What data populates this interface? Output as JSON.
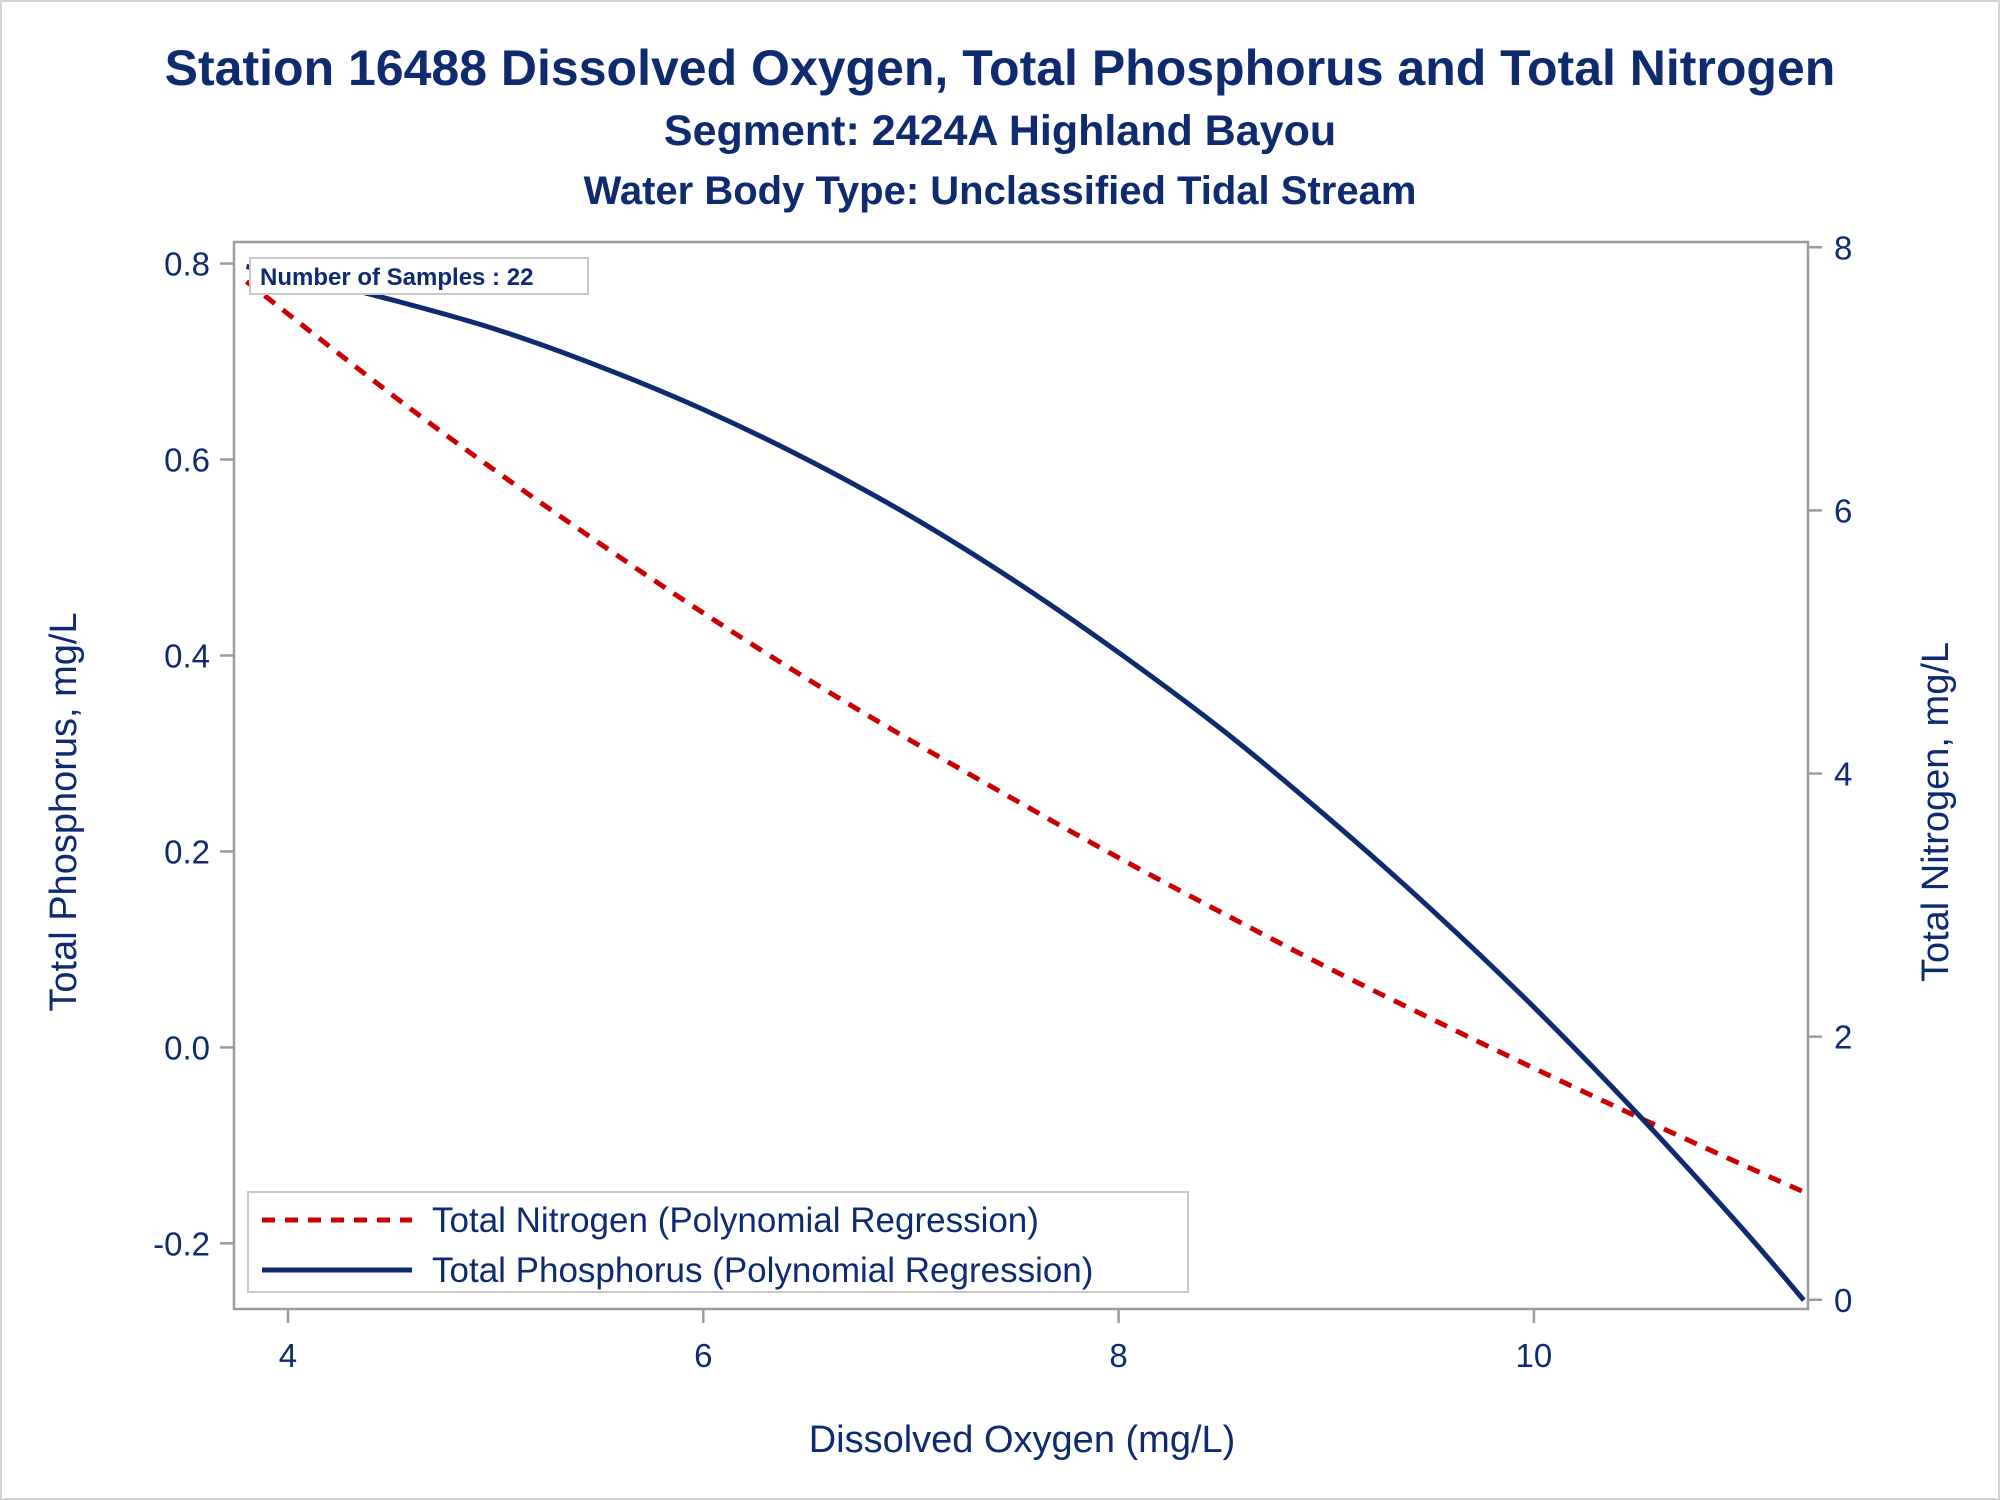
{
  "chart_data": {
    "type": "line",
    "title": "Station 16488  Dissolved Oxygen, Total Phosphorus and Total Nitrogen",
    "subtitle": "Segment: 2424A  Highland Bayou",
    "subtitle2": "Water Body Type: Unclassified Tidal Stream",
    "xlabel": "Dissolved Oxygen (mg/L)",
    "ylabel": "Total Phosphorus, mg/L",
    "y2label": "Total Nitrogen, mg/L",
    "xlim": [
      3.74,
      11.32
    ],
    "ylim": [
      -0.267,
      0.822
    ],
    "y2lim": [
      -0.07,
      8.04
    ],
    "x_ticks": [
      "4",
      "6",
      "8",
      "10"
    ],
    "y_ticks": [
      "-0.2",
      "0.0",
      "0.2",
      "0.4",
      "0.6",
      "0.8"
    ],
    "y2_ticks": [
      "0",
      "2",
      "4",
      "6",
      "8"
    ],
    "annotation": "Number of Samples : 22",
    "legend_position": "bottom-left",
    "series": [
      {
        "name": "Total Nitrogen (Polynomial Regression)",
        "axis": "y2",
        "color": "#cc0000",
        "style": "dashed",
        "x": [
          3.8,
          4.5,
          5.0,
          5.5,
          6.0,
          6.5,
          7.0,
          7.5,
          8.0,
          8.5,
          9.0,
          9.5,
          10.0,
          10.5,
          11.0,
          11.3
        ],
        "values": [
          7.74,
          6.88,
          6.3,
          5.75,
          5.22,
          4.72,
          4.25,
          3.8,
          3.36,
          2.94,
          2.53,
          2.14,
          1.76,
          1.39,
          1.03,
          0.82
        ]
      },
      {
        "name": "Total Phosphorus (Polynomial Regression)",
        "axis": "y",
        "color": "#0f2a6e",
        "style": "solid",
        "x": [
          3.8,
          4.0,
          4.5,
          5.0,
          5.5,
          6.0,
          6.5,
          7.0,
          7.5,
          8.0,
          8.5,
          9.0,
          9.5,
          10.0,
          10.5,
          11.0,
          11.3
        ],
        "values": [
          0.797,
          0.789,
          0.763,
          0.733,
          0.695,
          0.651,
          0.6,
          0.542,
          0.476,
          0.403,
          0.324,
          0.236,
          0.142,
          0.041,
          -0.068,
          -0.184,
          -0.258
        ]
      }
    ]
  },
  "colors": {
    "text": "#0f2a6e",
    "axis": "#9b9b9b",
    "frame": "#d4d4d4"
  }
}
